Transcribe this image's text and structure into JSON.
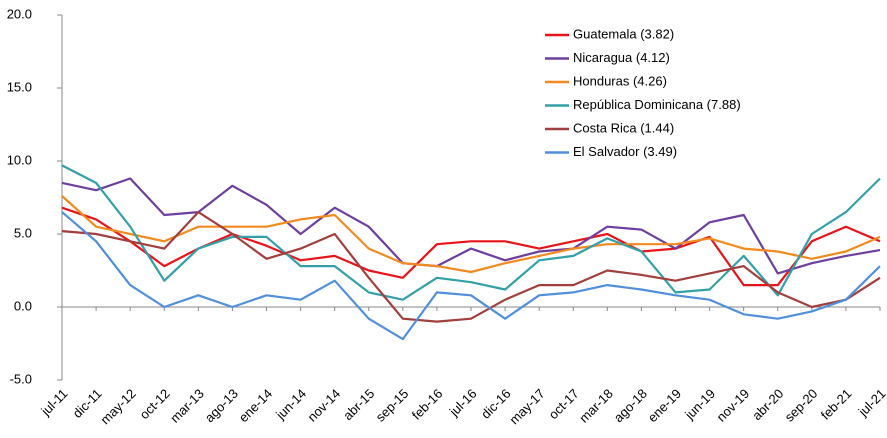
{
  "chart_data": {
    "type": "line",
    "categories": [
      "jul-11",
      "dic-11",
      "may-12",
      "oct-12",
      "mar-13",
      "ago-13",
      "ene-14",
      "jun-14",
      "nov-14",
      "abr-15",
      "sep-15",
      "feb-16",
      "jul-16",
      "dic-16",
      "may-17",
      "oct-17",
      "mar-18",
      "ago-18",
      "ene-19",
      "jun-19",
      "nov-19",
      "abr-20",
      "sep-20",
      "feb-21",
      "jul-21"
    ],
    "ylim": [
      -5,
      20
    ],
    "yticks": [
      {
        "value": -5,
        "label": "-5.0"
      },
      {
        "value": 0,
        "label": "0.0"
      },
      {
        "value": 5,
        "label": "5.0"
      },
      {
        "value": 10,
        "label": "10.0"
      },
      {
        "value": 15,
        "label": "15.0"
      },
      {
        "value": 20,
        "label": "20.0"
      }
    ],
    "legend": "upper right",
    "series": [
      {
        "name": "Guatemala (3.82)",
        "color": "#e8141a",
        "values": [
          6.8,
          6,
          4.5,
          2.8,
          4,
          5,
          4.2,
          3.2,
          3.5,
          2.5,
          2,
          4.3,
          4.5,
          4.5,
          4,
          4.5,
          5,
          3.8,
          4,
          4.8,
          1.5,
          1.5,
          4.5,
          5.5,
          4.5
        ]
      },
      {
        "name": "Nicaragua (4.12)",
        "color": "#6e3f9e",
        "values": [
          8.5,
          8,
          8.8,
          6.3,
          6.5,
          8.3,
          7,
          5,
          6.8,
          5.5,
          3,
          2.8,
          4,
          3.2,
          3.8,
          4,
          5.5,
          5.3,
          4,
          5.8,
          6.3,
          2.3,
          3,
          3.5,
          3.9
        ]
      },
      {
        "name": "Honduras (4.26)",
        "color": "#f28a1e",
        "values": [
          7.6,
          5.5,
          5,
          4.5,
          5.5,
          5.5,
          5.5,
          6,
          6.3,
          4,
          3,
          2.8,
          2.4,
          3,
          3.5,
          4,
          4.3,
          4.3,
          4.3,
          4.7,
          4,
          3.8,
          3.3,
          3.8,
          4.8
        ]
      },
      {
        "name": "República Dominicana (7.88)",
        "color": "#33a0a8",
        "values": [
          9.7,
          8.5,
          5.5,
          1.8,
          4,
          4.8,
          4.8,
          2.8,
          2.8,
          1,
          0.5,
          2,
          1.7,
          1.2,
          3.2,
          3.5,
          4.7,
          3.8,
          1,
          1.2,
          3.5,
          0.8,
          5,
          6.5,
          8.8
        ]
      },
      {
        "name": "Costa Rica (1.44)",
        "color": "#a23f3c",
        "values": [
          5.2,
          5,
          4.5,
          4,
          6.5,
          5,
          3.3,
          4,
          5,
          2,
          -0.8,
          -1,
          -0.8,
          0.5,
          1.5,
          1.5,
          2.5,
          2.2,
          1.8,
          2.3,
          2.8,
          1,
          0,
          0.5,
          2
        ]
      },
      {
        "name": "El Salvador (3.49)",
        "color": "#4f8fdc",
        "values": [
          6.5,
          4.5,
          1.5,
          0,
          0.8,
          0,
          0.8,
          0.5,
          1.8,
          -0.8,
          -2.2,
          1,
          0.8,
          -0.8,
          0.8,
          1,
          1.5,
          1.2,
          0.8,
          0.5,
          -0.5,
          -0.8,
          -0.3,
          0.5,
          2.8
        ]
      }
    ]
  }
}
